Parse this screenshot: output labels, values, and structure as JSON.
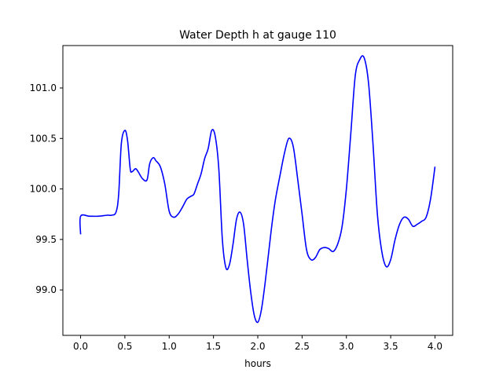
{
  "chart_data": {
    "type": "line",
    "title": "Water Depth h at gauge 110",
    "xlabel": "hours",
    "ylabel": "",
    "xlim": [
      -0.2,
      4.2
    ],
    "ylim": [
      98.55,
      101.42
    ],
    "xticks": [
      0.0,
      0.5,
      1.0,
      1.5,
      2.0,
      2.5,
      3.0,
      3.5,
      4.0
    ],
    "xtick_labels": [
      "0.0",
      "0.5",
      "1.0",
      "1.5",
      "2.0",
      "2.5",
      "3.0",
      "3.5",
      "4.0"
    ],
    "yticks": [
      99.0,
      99.5,
      100.0,
      100.5,
      101.0
    ],
    "ytick_labels": [
      "99.0",
      "99.5",
      "100.0",
      "100.5",
      "101.0"
    ],
    "grid": false,
    "series": [
      {
        "color": "#0000ff",
        "x": [
          0.0,
          0.0,
          0.1,
          0.2,
          0.3,
          0.35,
          0.4,
          0.43,
          0.46,
          0.5,
          0.53,
          0.56,
          0.58,
          0.62,
          0.65,
          0.7,
          0.75,
          0.78,
          0.82,
          0.85,
          0.9,
          0.95,
          1.0,
          1.05,
          1.1,
          1.15,
          1.2,
          1.25,
          1.28,
          1.32,
          1.36,
          1.4,
          1.44,
          1.48,
          1.52,
          1.56,
          1.6,
          1.64,
          1.68,
          1.72,
          1.76,
          1.8,
          1.84,
          1.88,
          1.92,
          1.96,
          2.0,
          2.04,
          2.08,
          2.12,
          2.16,
          2.2,
          2.25,
          2.3,
          2.35,
          2.4,
          2.45,
          2.5,
          2.55,
          2.6,
          2.65,
          2.7,
          2.75,
          2.8,
          2.85,
          2.9,
          2.95,
          3.0,
          3.05,
          3.1,
          3.15,
          3.2,
          3.25,
          3.3,
          3.35,
          3.4,
          3.45,
          3.5,
          3.55,
          3.6,
          3.65,
          3.7,
          3.75,
          3.8,
          3.85,
          3.9,
          3.95,
          4.0
        ],
        "y": [
          99.55,
          99.73,
          99.73,
          99.73,
          99.74,
          99.74,
          99.77,
          99.95,
          100.45,
          100.58,
          100.48,
          100.2,
          100.17,
          100.2,
          100.17,
          100.1,
          100.09,
          100.25,
          100.31,
          100.28,
          100.22,
          100.05,
          99.78,
          99.72,
          99.75,
          99.82,
          99.9,
          99.93,
          99.95,
          100.05,
          100.15,
          100.3,
          100.4,
          100.58,
          100.52,
          100.2,
          99.5,
          99.22,
          99.25,
          99.45,
          99.7,
          99.77,
          99.65,
          99.3,
          98.98,
          98.75,
          98.68,
          98.8,
          99.05,
          99.35,
          99.65,
          99.9,
          100.13,
          100.35,
          100.5,
          100.42,
          100.1,
          99.75,
          99.4,
          99.3,
          99.32,
          99.4,
          99.42,
          99.41,
          99.38,
          99.45,
          99.62,
          100.0,
          100.55,
          101.12,
          101.28,
          101.3,
          101.05,
          100.45,
          99.75,
          99.38,
          99.23,
          99.3,
          99.5,
          99.65,
          99.72,
          99.7,
          99.63,
          99.65,
          99.68,
          99.72,
          99.9,
          100.22
        ]
      }
    ]
  }
}
